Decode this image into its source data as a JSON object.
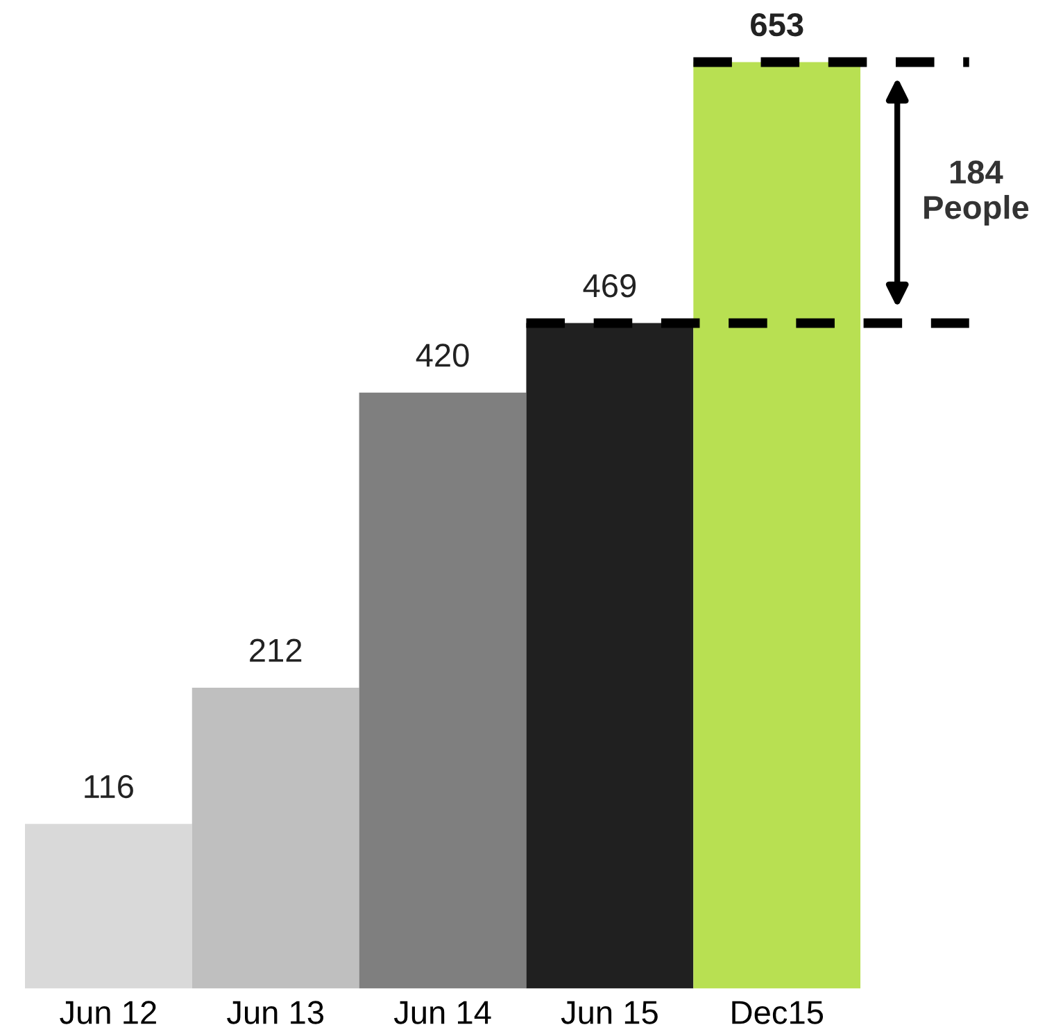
{
  "chart_data": {
    "type": "bar",
    "categories": [
      "Jun 12",
      "Jun 13",
      "Jun 14",
      "Jun 15",
      "Dec15"
    ],
    "values": [
      116,
      212,
      420,
      469,
      653
    ],
    "colors": [
      "#d9d9d9",
      "#bfbfbf",
      "#7f7f7f",
      "#202020",
      "#b8e052"
    ],
    "data_labels": true,
    "ref_lines": [
      {
        "axis": "y",
        "value": 469,
        "color": "#000000",
        "line_style": "dashed"
      },
      {
        "axis": "y",
        "value": 653,
        "color": "#000000",
        "line_style": "dashed"
      }
    ],
    "annotations": [
      "184\nPeople"
    ],
    "grid": false
  }
}
